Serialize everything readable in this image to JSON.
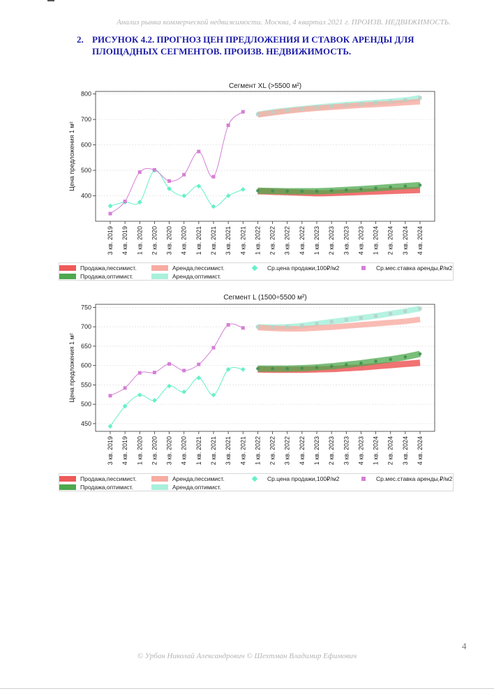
{
  "header": "Анализ рынка коммерческой недвижимости.  Москва,  4 квартал 2021 г.  ПРОИЗВ. НЕДВИЖИМОСТЬ.",
  "section": {
    "number": "2.",
    "title_line1": "РИСУНОК 4.2. ПРОГНОЗ ЦЕН ПРЕДЛОЖЕНИЯ И СТАВОК АРЕНДЫ ДЛЯ",
    "title_line2": "ПЛОЩАДНЫХ СЕГМЕНТОВ.  ПРОИЗВ. НЕДВИЖИМОСТЬ."
  },
  "legend": {
    "sale_pess": "Продажа,пессимист.",
    "rent_pess": "Аренда,пессимист.",
    "sale_price": "Ср.цена продажи,100₽/м2",
    "rent_rate": "Ср.мес.ставка аренды,₽/м2",
    "sale_opt": "Продажа,оптимист.",
    "rent_opt": "Аренда,оптимист."
  },
  "colors": {
    "sale_pess": "#ee5a5a",
    "rent_pess": "#f7aba1",
    "sale_opt": "#4ea84e",
    "rent_opt": "#a8f0dc",
    "sale_price": "#66f0c8",
    "rent_rate": "#d57fd5"
  },
  "footer": "© Урбан Николай Александрович  © Шехтман Владимир Ефимович",
  "page_number": "4",
  "chart_data": [
    {
      "type": "line",
      "title": "Сегмент XL (>5500 м²)",
      "ylabel": "Цена предложения 1 м²",
      "xlabel": "",
      "ylim": [
        300,
        810
      ],
      "yticks": [
        400,
        500,
        600,
        700,
        800
      ],
      "categories": [
        "3 кв. 2019",
        "4 кв. 2019",
        "1 кв. 2020",
        "2 кв. 2020",
        "3 кв. 2020",
        "4 кв. 2020",
        "1 кв. 2021",
        "2 кв. 2021",
        "3 кв. 2021",
        "4 кв. 2021",
        "1 кв. 2022",
        "2 кв. 2022",
        "3 кв. 2022",
        "4 кв. 2022",
        "1 кв. 2023",
        "2 кв. 2023",
        "3 кв. 2023",
        "4 кв. 2023",
        "1 кв. 2024",
        "2 кв. 2024",
        "3 кв. 2024",
        "4 кв. 2024"
      ],
      "grid": "horizontal",
      "legend_position": "below",
      "series": [
        {
          "name": "Ср.цена продажи,100₽/м2",
          "values": [
            360,
            375,
            375,
            500,
            428,
            400,
            438,
            358,
            400,
            425,
            null,
            null,
            null,
            null,
            null,
            null,
            null,
            null,
            null,
            null,
            null,
            null
          ]
        },
        {
          "name": "Ср.мес.ставка аренды,₽/м2",
          "values": [
            330,
            378,
            493,
            502,
            458,
            483,
            574,
            475,
            677,
            730,
            null,
            null,
            null,
            null,
            null,
            null,
            null,
            null,
            null,
            null,
            null,
            null
          ]
        },
        {
          "name": "Продажа,пессимист.",
          "values": [
            null,
            null,
            null,
            null,
            null,
            null,
            null,
            null,
            null,
            null,
            418,
            416,
            414,
            412,
            410,
            411,
            413,
            415,
            417,
            419,
            421,
            423
          ]
        },
        {
          "name": "Продажа,оптимист.",
          "values": [
            null,
            null,
            null,
            null,
            null,
            null,
            null,
            null,
            null,
            null,
            420,
            419,
            418,
            418,
            418,
            420,
            423,
            426,
            430,
            434,
            438,
            442
          ]
        },
        {
          "name": "Аренда,пессимист.",
          "values": [
            null,
            null,
            null,
            null,
            null,
            null,
            null,
            null,
            null,
            null,
            718,
            726,
            733,
            739,
            744,
            748,
            752,
            756,
            759,
            762,
            766,
            770
          ]
        },
        {
          "name": "Аренда,оптимист.",
          "values": [
            null,
            null,
            null,
            null,
            null,
            null,
            null,
            null,
            null,
            null,
            720,
            729,
            736,
            742,
            748,
            753,
            758,
            762,
            766,
            771,
            776,
            785
          ]
        }
      ]
    },
    {
      "type": "line",
      "title": "Сегмент L (1500÷5500 м²)",
      "ylabel": "Цена предложения 1 м²",
      "xlabel": "",
      "ylim": [
        430,
        758
      ],
      "yticks": [
        450,
        500,
        550,
        600,
        650,
        700,
        750
      ],
      "categories": [
        "3 кв. 2019",
        "4 кв. 2019",
        "1 кв. 2020",
        "2 кв. 2020",
        "3 кв. 2020",
        "4 кв. 2020",
        "1 кв. 2021",
        "2 кв. 2021",
        "3 кв. 2021",
        "4 кв. 2021",
        "1 кв. 2022",
        "2 кв. 2022",
        "3 кв. 2022",
        "4 кв. 2022",
        "1 кв. 2023",
        "2 кв. 2023",
        "3 кв. 2023",
        "4 кв. 2023",
        "1 кв. 2024",
        "2 кв. 2024",
        "3 кв. 2024",
        "4 кв. 2024"
      ],
      "grid": "horizontal",
      "legend_position": "below",
      "series": [
        {
          "name": "Ср.цена продажи,100₽/м2",
          "values": [
            443,
            495,
            524,
            510,
            547,
            532,
            568,
            524,
            590,
            590,
            null,
            null,
            null,
            null,
            null,
            null,
            null,
            null,
            null,
            null,
            null,
            null
          ]
        },
        {
          "name": "Ср.мес.ставка аренды,₽/м2",
          "values": [
            522,
            542,
            581,
            582,
            604,
            587,
            603,
            646,
            705,
            697,
            null,
            null,
            null,
            null,
            null,
            null,
            null,
            null,
            null,
            null,
            null,
            null
          ]
        },
        {
          "name": "Продажа,пессимист.",
          "values": [
            null,
            null,
            null,
            null,
            null,
            null,
            null,
            null,
            null,
            null,
            590,
            589,
            589,
            589,
            590,
            591,
            593,
            595,
            598,
            601,
            604,
            607
          ]
        },
        {
          "name": "Продажа,оптимист.",
          "values": [
            null,
            null,
            null,
            null,
            null,
            null,
            null,
            null,
            null,
            null,
            592,
            592,
            592,
            593,
            595,
            598,
            602,
            606,
            611,
            616,
            622,
            630
          ]
        },
        {
          "name": "Аренда,пессимист.",
          "values": [
            null,
            null,
            null,
            null,
            null,
            null,
            null,
            null,
            null,
            null,
            698,
            696,
            695,
            695,
            697,
            699,
            702,
            705,
            708,
            711,
            714,
            719
          ]
        },
        {
          "name": "Аренда,оптимист.",
          "values": [
            null,
            null,
            null,
            null,
            null,
            null,
            null,
            null,
            null,
            null,
            700,
            699,
            700,
            703,
            708,
            713,
            718,
            723,
            728,
            734,
            740,
            747
          ]
        }
      ]
    }
  ]
}
